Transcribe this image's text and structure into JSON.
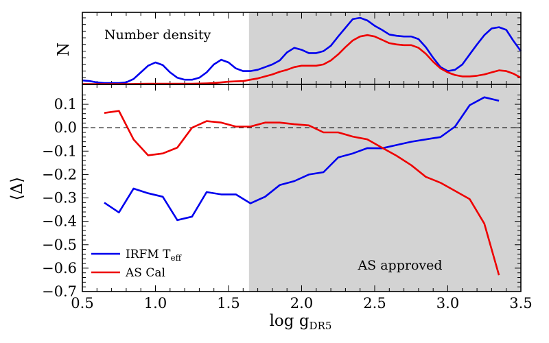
{
  "chart_data": [
    {
      "type": "line",
      "panel": "top",
      "annotation": "Number density",
      "ylabel": "N",
      "xlim": [
        0.5,
        3.5
      ],
      "ylim": [
        0,
        1.0
      ],
      "shaded_x_range": [
        1.64,
        3.5
      ],
      "series": [
        {
          "color": "#0000ee",
          "x": [
            0.5,
            0.55,
            0.6,
            0.65,
            0.7,
            0.75,
            0.8,
            0.85,
            0.9,
            0.95,
            1.0,
            1.05,
            1.1,
            1.15,
            1.2,
            1.25,
            1.3,
            1.35,
            1.4,
            1.45,
            1.5,
            1.55,
            1.6,
            1.65,
            1.7,
            1.75,
            1.8,
            1.85,
            1.9,
            1.95,
            2.0,
            2.05,
            2.1,
            2.15,
            2.2,
            2.25,
            2.3,
            2.35,
            2.4,
            2.45,
            2.5,
            2.55,
            2.6,
            2.65,
            2.7,
            2.75,
            2.8,
            2.85,
            2.9,
            2.95,
            3.0,
            3.05,
            3.1,
            3.15,
            3.2,
            3.25,
            3.3,
            3.35,
            3.4,
            3.45,
            3.5
          ],
          "values": [
            0.06,
            0.05,
            0.03,
            0.02,
            0.02,
            0.02,
            0.03,
            0.08,
            0.18,
            0.28,
            0.33,
            0.29,
            0.18,
            0.1,
            0.07,
            0.07,
            0.1,
            0.18,
            0.3,
            0.37,
            0.33,
            0.24,
            0.2,
            0.2,
            0.22,
            0.26,
            0.3,
            0.36,
            0.48,
            0.55,
            0.52,
            0.47,
            0.47,
            0.5,
            0.58,
            0.72,
            0.85,
            0.98,
            1.0,
            0.96,
            0.88,
            0.82,
            0.75,
            0.73,
            0.72,
            0.72,
            0.68,
            0.56,
            0.4,
            0.26,
            0.2,
            0.22,
            0.3,
            0.45,
            0.6,
            0.74,
            0.84,
            0.86,
            0.82,
            0.65,
            0.5
          ]
        },
        {
          "color": "#ee0000",
          "x": [
            0.5,
            0.55,
            0.6,
            0.65,
            0.7,
            0.75,
            0.8,
            0.85,
            0.9,
            0.95,
            1.0,
            1.05,
            1.1,
            1.15,
            1.2,
            1.25,
            1.3,
            1.35,
            1.4,
            1.45,
            1.5,
            1.55,
            1.6,
            1.65,
            1.7,
            1.75,
            1.8,
            1.85,
            1.9,
            1.95,
            2.0,
            2.05,
            2.1,
            2.15,
            2.2,
            2.25,
            2.3,
            2.35,
            2.4,
            2.45,
            2.5,
            2.55,
            2.6,
            2.65,
            2.7,
            2.75,
            2.8,
            2.85,
            2.9,
            2.95,
            3.0,
            3.05,
            3.1,
            3.15,
            3.2,
            3.25,
            3.3,
            3.35,
            3.4,
            3.45,
            3.5
          ],
          "values": [
            0.005,
            0.005,
            0.005,
            0.005,
            0.005,
            0.005,
            0.005,
            0.006,
            0.008,
            0.01,
            0.01,
            0.01,
            0.01,
            0.01,
            0.01,
            0.01,
            0.012,
            0.015,
            0.02,
            0.03,
            0.04,
            0.045,
            0.05,
            0.07,
            0.09,
            0.12,
            0.15,
            0.19,
            0.22,
            0.26,
            0.28,
            0.28,
            0.28,
            0.3,
            0.36,
            0.45,
            0.56,
            0.66,
            0.72,
            0.74,
            0.72,
            0.67,
            0.62,
            0.6,
            0.59,
            0.59,
            0.55,
            0.46,
            0.34,
            0.24,
            0.18,
            0.14,
            0.12,
            0.12,
            0.13,
            0.15,
            0.18,
            0.21,
            0.2,
            0.16,
            0.1
          ]
        }
      ]
    },
    {
      "type": "line",
      "panel": "bottom",
      "xlabel": "log g",
      "xlabel_sub": "DR5",
      "ylabel": "⟨Δ⟩",
      "xlim": [
        0.5,
        3.5
      ],
      "ylim": [
        -0.7,
        0.15
      ],
      "xticks": [
        0.5,
        1.0,
        1.5,
        2.0,
        2.5,
        3.0,
        3.5
      ],
      "xtick_labels": [
        "0.5",
        "1.0",
        "1.5",
        "2.0",
        "2.5",
        "3.0",
        "3.5"
      ],
      "yticks": [
        0.1,
        0.0,
        -0.1,
        -0.2,
        -0.3,
        -0.4,
        -0.5,
        -0.6,
        -0.7
      ],
      "ytick_labels": [
        "0.1",
        "0.0",
        "−0.1",
        "−0.2",
        "−0.3",
        "−0.4",
        "−0.5",
        "−0.6",
        "−0.7"
      ],
      "reference_line": 0.0,
      "shaded_x_range": [
        1.64,
        3.5
      ],
      "shaded_label": "AS approved",
      "legend_position": "lower-left",
      "series": [
        {
          "name": "IRFM T",
          "name_sub": "eff",
          "color": "#0000ee",
          "x": [
            0.65,
            0.75,
            0.85,
            0.95,
            1.05,
            1.15,
            1.25,
            1.35,
            1.45,
            1.55,
            1.65,
            1.75,
            1.85,
            1.95,
            2.05,
            2.15,
            2.25,
            2.35,
            2.45,
            2.55,
            2.65,
            2.75,
            2.85,
            2.95,
            3.05,
            3.15,
            3.25,
            3.35
          ],
          "values": [
            -0.32,
            -0.362,
            -0.26,
            -0.28,
            -0.295,
            -0.395,
            -0.38,
            -0.275,
            -0.285,
            -0.285,
            -0.323,
            -0.295,
            -0.245,
            -0.228,
            -0.2,
            -0.19,
            -0.127,
            -0.11,
            -0.087,
            -0.088,
            -0.074,
            -0.06,
            -0.05,
            -0.04,
            0.005,
            0.096,
            0.13,
            0.115
          ]
        },
        {
          "name": "AS Cal",
          "color": "#ee0000",
          "x": [
            0.65,
            0.75,
            0.85,
            0.95,
            1.05,
            1.15,
            1.25,
            1.35,
            1.45,
            1.55,
            1.65,
            1.75,
            1.85,
            1.95,
            2.05,
            2.15,
            2.25,
            2.35,
            2.45,
            2.55,
            2.65,
            2.75,
            2.85,
            2.95,
            3.05,
            3.15,
            3.25,
            3.35
          ],
          "values": [
            0.063,
            0.072,
            -0.05,
            -0.118,
            -0.11,
            -0.085,
            0.0,
            0.028,
            0.022,
            0.005,
            0.005,
            0.022,
            0.022,
            0.015,
            0.01,
            -0.02,
            -0.02,
            -0.038,
            -0.05,
            -0.085,
            -0.12,
            -0.16,
            -0.21,
            -0.235,
            -0.27,
            -0.305,
            -0.41,
            -0.63
          ]
        }
      ]
    }
  ]
}
